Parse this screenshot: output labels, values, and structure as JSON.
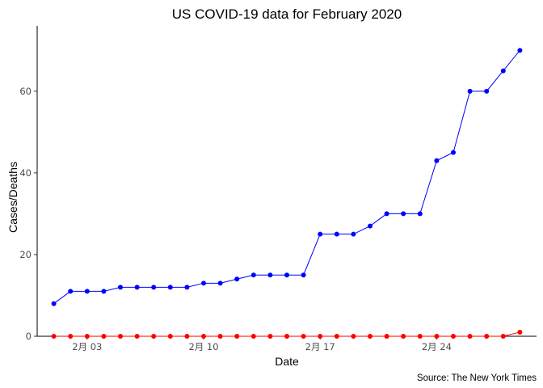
{
  "chart_data": {
    "type": "line",
    "title": "US COVID-19 data for February 2020",
    "xlabel": "Date",
    "ylabel": "Cases/Deaths",
    "caption": "Source: The New York Times",
    "x": [
      "2020-02-01",
      "2020-02-02",
      "2020-02-03",
      "2020-02-04",
      "2020-02-05",
      "2020-02-06",
      "2020-02-07",
      "2020-02-08",
      "2020-02-09",
      "2020-02-10",
      "2020-02-11",
      "2020-02-12",
      "2020-02-13",
      "2020-02-14",
      "2020-02-15",
      "2020-02-16",
      "2020-02-17",
      "2020-02-18",
      "2020-02-19",
      "2020-02-20",
      "2020-02-21",
      "2020-02-22",
      "2020-02-23",
      "2020-02-24",
      "2020-02-25",
      "2020-02-26",
      "2020-02-27",
      "2020-02-28",
      "2020-02-29"
    ],
    "x_ticks": [
      "2020-02-03",
      "2020-02-10",
      "2020-02-17",
      "2020-02-24"
    ],
    "x_tick_labels": [
      "2月 03",
      "2月 10",
      "2月 17",
      "2月 24"
    ],
    "xlim": [
      "2020-01-31",
      "2020-03-01"
    ],
    "ylim": [
      0,
      76
    ],
    "y_ticks": [
      0,
      20,
      40,
      60
    ],
    "grid": false,
    "series": [
      {
        "color": "#0000ff",
        "values": [
          8,
          11,
          11,
          11,
          12,
          12,
          12,
          12,
          12,
          13,
          13,
          14,
          15,
          15,
          15,
          15,
          25,
          25,
          25,
          27,
          30,
          30,
          30,
          43,
          45,
          60,
          60,
          65,
          70
        ]
      },
      {
        "color": "#ff0000",
        "values": [
          0,
          0,
          0,
          0,
          0,
          0,
          0,
          0,
          0,
          0,
          0,
          0,
          0,
          0,
          0,
          0,
          0,
          0,
          0,
          0,
          0,
          0,
          0,
          0,
          0,
          0,
          0,
          0,
          1
        ]
      }
    ]
  }
}
